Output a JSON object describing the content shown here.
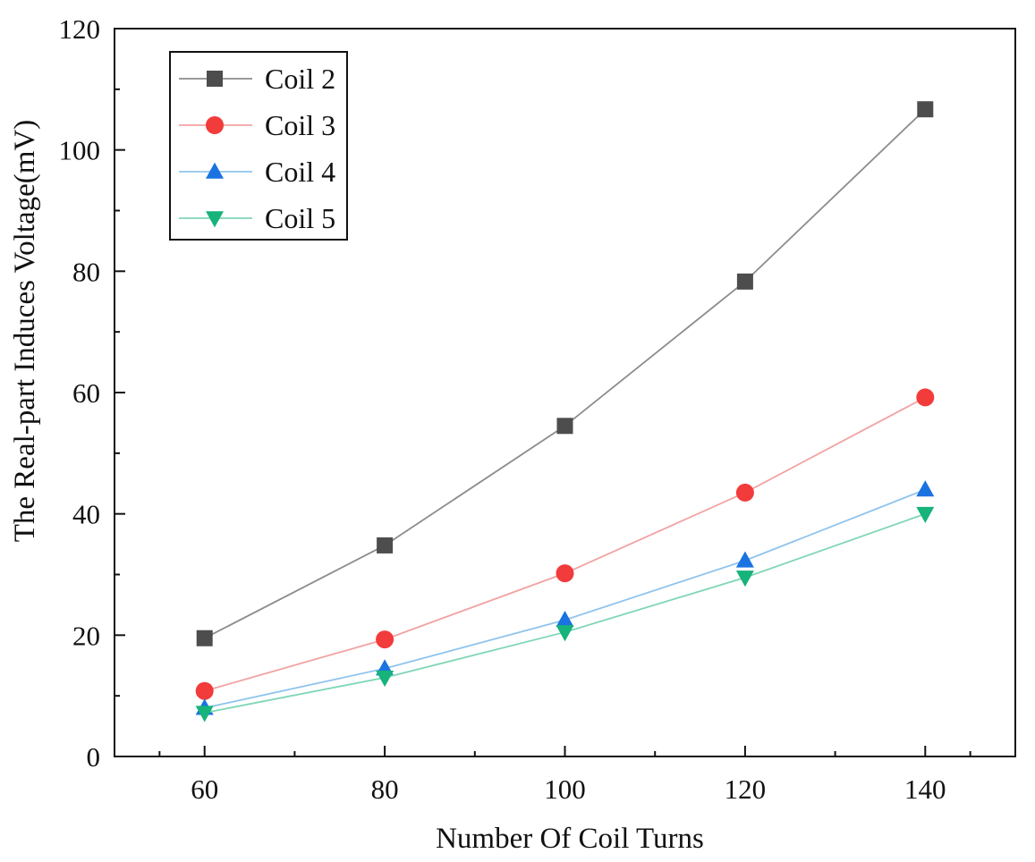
{
  "chart_data": {
    "type": "line",
    "title": "",
    "xlabel": "Number Of Coil Turns",
    "ylabel": "The Real-part Induces Voltage(mV)",
    "x": [
      60,
      80,
      100,
      120,
      140
    ],
    "xlim": [
      50,
      150
    ],
    "ylim": [
      0,
      120
    ],
    "xticks": [
      60,
      80,
      100,
      120,
      140
    ],
    "yticks": [
      0,
      20,
      40,
      60,
      80,
      100,
      120
    ],
    "grid": false,
    "legend_position": "top-left",
    "series": [
      {
        "name": "Coil 2",
        "marker": "square",
        "values": [
          19.5,
          34.8,
          54.5,
          78.3,
          106.7
        ]
      },
      {
        "name": "Coil 3",
        "marker": "circle",
        "values": [
          10.8,
          19.3,
          30.2,
          43.5,
          59.2
        ]
      },
      {
        "name": "Coil 4",
        "marker": "triangle-up",
        "values": [
          8.0,
          14.5,
          22.5,
          32.3,
          44.0
        ]
      },
      {
        "name": "Coil 5",
        "marker": "triangle-down",
        "values": [
          7.2,
          13.0,
          20.5,
          29.5,
          40.0
        ]
      }
    ],
    "colors": {
      "Coil 2": {
        "line": "#8c8c8c",
        "marker": "#4d4d4d"
      },
      "Coil 3": {
        "line": "#f2a3a3",
        "marker": "#f23b3b"
      },
      "Coil 4": {
        "line": "#8fc4ee",
        "marker": "#1a73e0"
      },
      "Coil 5": {
        "line": "#7fd6b4",
        "marker": "#16b37a"
      }
    }
  }
}
